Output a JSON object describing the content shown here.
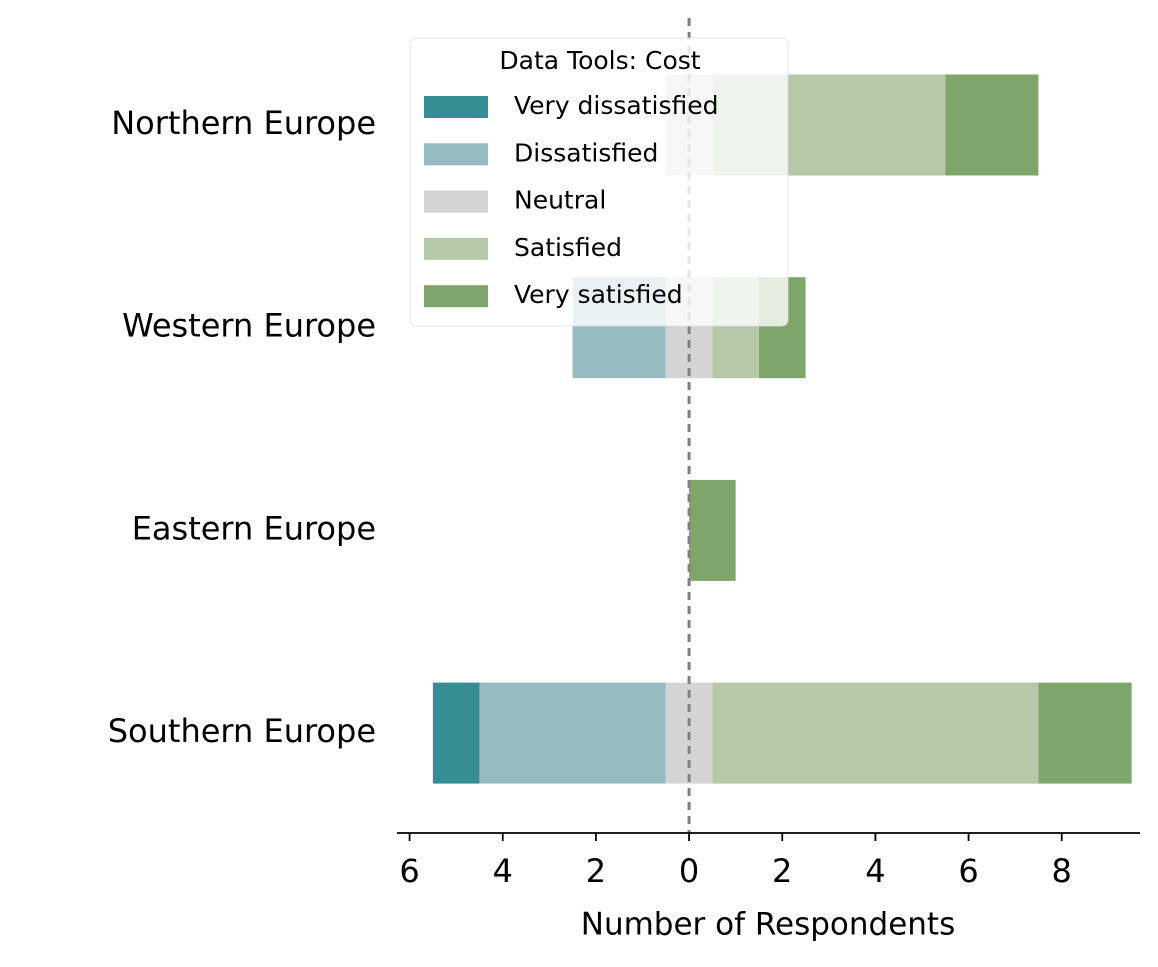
{
  "chart_data": {
    "type": "diverging-bar",
    "legend_title": "Data Tools: Cost",
    "x_label": "Number of Respondents",
    "categories": [
      "Northern Europe",
      "Western Europe",
      "Eastern Europe",
      "Southern Europe"
    ],
    "series": [
      {
        "name": "Very dissatisfied",
        "color": "#368d94",
        "values": [
          0,
          0,
          0,
          1
        ]
      },
      {
        "name": "Dissatisfied",
        "color": "#96bbc1",
        "values": [
          0,
          2,
          0,
          4
        ]
      },
      {
        "name": "Neutral",
        "color": "#d4d4d4",
        "values": [
          1,
          1,
          0,
          1
        ]
      },
      {
        "name": "Satisfied",
        "color": "#b5c9a9",
        "values": [
          5,
          1,
          0,
          7
        ]
      },
      {
        "name": "Very satisfied",
        "color": "#7ea66b",
        "values": [
          2,
          1,
          1,
          2
        ]
      }
    ],
    "xlim": [
      -6.27,
      9.68
    ],
    "xticks": [
      {
        "value": -6,
        "label": "6"
      },
      {
        "value": -4,
        "label": "4"
      },
      {
        "value": -2,
        "label": "2"
      },
      0,
      2,
      4,
      6,
      8
    ],
    "legend_position": "upper left"
  }
}
